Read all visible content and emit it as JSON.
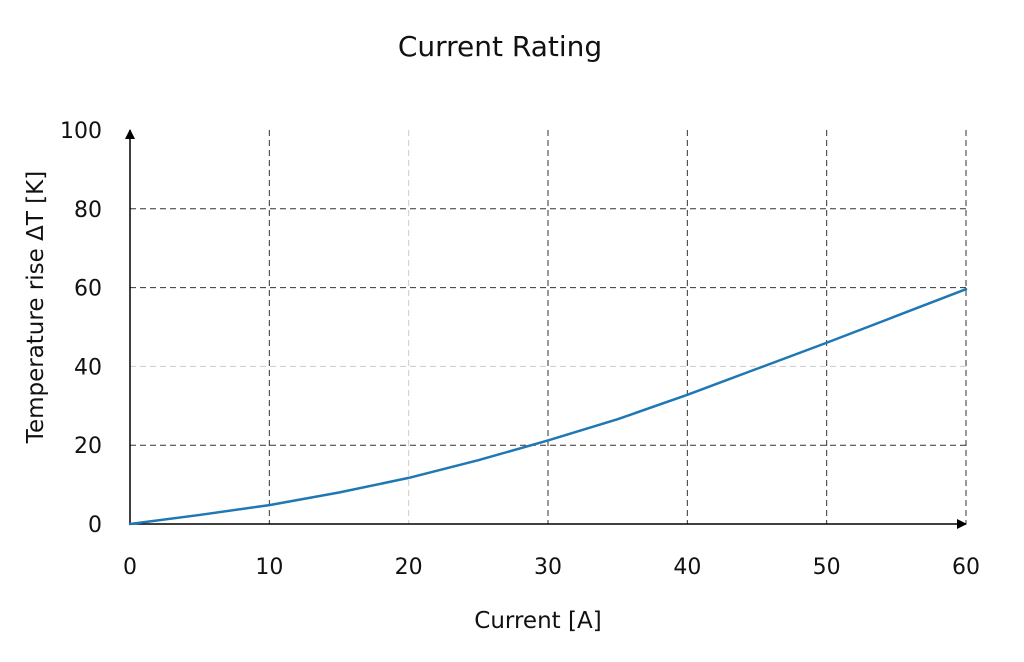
{
  "chart_data": {
    "type": "line",
    "title": "Current Rating",
    "xlabel": "Current [A]",
    "ylabel": "Temperature rise ΔT [K]",
    "xlim": [
      0,
      60
    ],
    "ylim": [
      0,
      100
    ],
    "x_ticks": [
      "0",
      "10",
      "20",
      "30",
      "40",
      "50",
      "60"
    ],
    "y_ticks": [
      "0",
      "20",
      "40",
      "60",
      "80",
      "100"
    ],
    "grid": true,
    "series": [
      {
        "x": [
          0,
          5,
          10,
          15,
          20,
          25,
          30,
          35,
          40,
          45,
          50,
          55,
          60
        ],
        "y": [
          0,
          2.3,
          4.8,
          8.0,
          11.7,
          16.2,
          21.2,
          26.6,
          32.8,
          39.4,
          46.0,
          52.8,
          59.6
        ]
      }
    ],
    "colors": {
      "line": "#1f77b4",
      "axis": "#000000",
      "grid_dark": "#333333",
      "grid_light": "#cccccc"
    }
  }
}
